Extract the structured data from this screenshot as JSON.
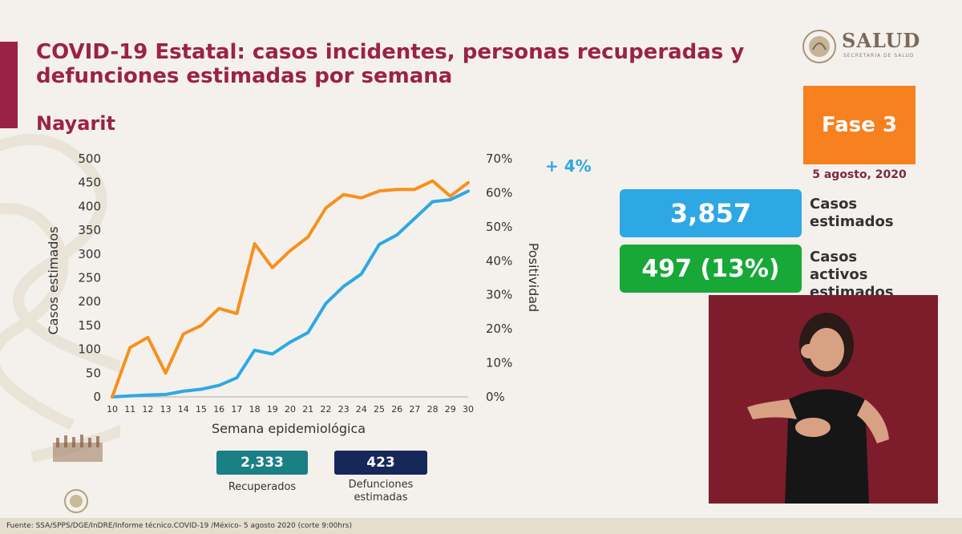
{
  "header": {
    "title": "COVID-19 Estatal: casos incidentes, personas recuperadas y defunciones estimadas por semana",
    "state": "Nayarit"
  },
  "logo": {
    "name": "SALUD",
    "subtitle": "SECRETARÍA DE SALUD",
    "icon": "national-shield-icon"
  },
  "phase": {
    "label": "Fase 3",
    "color": "#f7801f"
  },
  "date": "5 agosto, 2020",
  "stats": {
    "cases": {
      "value": "3,857",
      "label": "Casos estimados",
      "color": "#2ea8e4"
    },
    "active": {
      "value": "497 (13%)",
      "label": "Casos activos estimados",
      "color": "#17a838"
    }
  },
  "pills": {
    "recovered": {
      "value": "2,333",
      "label": "Recuperados",
      "color": "#1b7f86"
    },
    "deaths": {
      "value": "423",
      "label": "Defunciones estimadas",
      "color": "#16275a"
    }
  },
  "footer": "Fuente: SSA/SPPS/DGE/InDRE/Informe técnico.COVID-19 /México- 5 agosto 2020 (corte 9:00hrs)",
  "chart_data": {
    "type": "line",
    "xlabel": "Semana epidemiológica",
    "ylabel": "Casos estimados",
    "y2label": "Positividad",
    "annotation": "+ 4%",
    "x": [
      10,
      11,
      12,
      13,
      14,
      15,
      16,
      17,
      18,
      19,
      20,
      21,
      22,
      23,
      24,
      25,
      26,
      27,
      28,
      29,
      30
    ],
    "ylim": [
      0,
      500
    ],
    "yticks": [
      0,
      50,
      100,
      150,
      200,
      250,
      300,
      350,
      400,
      450,
      500
    ],
    "y2lim": [
      0,
      70
    ],
    "y2ticks": [
      "0%",
      "10%",
      "20%",
      "30%",
      "40%",
      "50%",
      "60%",
      "70%"
    ],
    "grid": false,
    "series": [
      {
        "axis": "left",
        "color": "#2ea8e4",
        "values": [
          0,
          2,
          4,
          5,
          12,
          16,
          24,
          40,
          98,
          90,
          115,
          135,
          196,
          232,
          258,
          320,
          340,
          375,
          410,
          414,
          432
        ]
      },
      {
        "axis": "right",
        "color": "#f7901e",
        "values": [
          0,
          14.5,
          17.5,
          7,
          18.5,
          21,
          26,
          24.5,
          45,
          38,
          43,
          47,
          55.5,
          59.5,
          58.5,
          60.5,
          61,
          61,
          63.5,
          59,
          63
        ]
      }
    ]
  }
}
